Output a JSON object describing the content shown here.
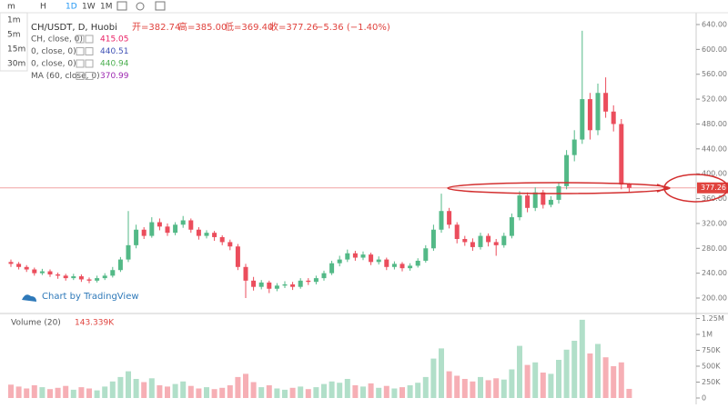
{
  "toolbar": {
    "items": [
      "m",
      "H",
      "1D",
      "1W",
      "1M"
    ],
    "menu": [
      "1m",
      "5m",
      "15m",
      "30m"
    ]
  },
  "legend": {
    "symbol": "CH/USDT, D, Huobi",
    "open": "开=382.74",
    "high": "高=385.00",
    "low": "低=369.40",
    "close": "收=377.26",
    "change": "−5.36 (−1.40%)",
    "indicators": [
      {
        "name": "CH, close, 0)",
        "value": "415.05",
        "color": "#e91e63"
      },
      {
        "name": "0, close, 0)",
        "value": "440.51",
        "color": "#3f51b5"
      },
      {
        "name": "0, close, 0)",
        "value": "440.94",
        "color": "#4caf50"
      },
      {
        "name": "MA (60, close, 0)",
        "value": "370.99",
        "color": "#9c27b0"
      }
    ]
  },
  "watermark": "Chart by TradingView",
  "chart_data": [
    {
      "type": "candlestick",
      "up_color": "#53b987",
      "down_color": "#eb4d5c",
      "open": [
        258,
        255,
        250,
        246,
        240,
        243,
        238,
        236,
        232,
        235,
        230,
        228,
        232,
        236,
        245,
        262,
        285,
        310,
        300,
        322,
        315,
        305,
        318,
        325,
        310,
        300,
        305,
        298,
        290,
        283,
        250,
        228,
        218,
        225,
        215,
        220,
        222,
        218,
        228,
        226,
        232,
        240,
        256,
        262,
        272,
        265,
        270,
        258,
        262,
        250,
        255,
        248,
        252,
        260,
        280,
        310,
        340,
        318,
        295,
        290,
        282,
        300,
        290,
        285,
        300,
        330,
        365,
        345,
        370,
        350,
        358,
        380,
        430,
        455,
        520,
        470,
        530,
        500,
        480,
        382.74
      ],
      "high": [
        262,
        258,
        253,
        249,
        247,
        246,
        241,
        239,
        239,
        238,
        233,
        236,
        240,
        250,
        266,
        340,
        318,
        314,
        330,
        328,
        320,
        322,
        332,
        328,
        314,
        309,
        308,
        301,
        294,
        287,
        255,
        234,
        229,
        228,
        224,
        227,
        226,
        232,
        232,
        236,
        244,
        260,
        268,
        278,
        276,
        275,
        273,
        267,
        265,
        259,
        258,
        256,
        264,
        285,
        318,
        368,
        345,
        322,
        300,
        296,
        305,
        304,
        295,
        305,
        336,
        372,
        370,
        378,
        374,
        364,
        386,
        438,
        470,
        630,
        530,
        545,
        555,
        510,
        488,
        385
      ],
      "low": [
        250,
        246,
        242,
        236,
        237,
        234,
        231,
        228,
        229,
        226,
        224,
        225,
        229,
        233,
        242,
        258,
        280,
        295,
        297,
        309,
        300,
        301,
        313,
        305,
        294,
        296,
        292,
        285,
        277,
        245,
        200,
        212,
        214,
        208,
        211,
        216,
        213,
        215,
        221,
        222,
        228,
        237,
        251,
        258,
        260,
        261,
        253,
        254,
        245,
        246,
        243,
        244,
        249,
        257,
        276,
        305,
        312,
        288,
        284,
        276,
        278,
        283,
        268,
        281,
        296,
        325,
        338,
        340,
        344,
        346,
        352,
        375,
        420,
        448,
        455,
        462,
        490,
        468,
        375,
        369.4
      ],
      "close": [
        255,
        250,
        246,
        240,
        243,
        238,
        236,
        232,
        235,
        230,
        228,
        232,
        236,
        245,
        262,
        285,
        310,
        300,
        322,
        315,
        305,
        318,
        325,
        310,
        300,
        305,
        298,
        290,
        283,
        250,
        228,
        218,
        225,
        215,
        220,
        222,
        218,
        228,
        226,
        232,
        240,
        256,
        262,
        272,
        265,
        270,
        258,
        262,
        250,
        255,
        248,
        252,
        260,
        280,
        310,
        340,
        318,
        295,
        290,
        282,
        300,
        290,
        285,
        300,
        330,
        365,
        345,
        370,
        350,
        358,
        380,
        430,
        455,
        520,
        470,
        530,
        500,
        480,
        382.62,
        377.26
      ],
      "last_price": 377.26,
      "ylim": [
        200,
        640
      ],
      "yticks": [
        {
          "value": 200,
          "label": "200.00"
        },
        {
          "value": 240,
          "label": "240.00"
        },
        {
          "value": 280,
          "label": "280.00"
        },
        {
          "value": 320,
          "label": "320.00"
        },
        {
          "value": 360,
          "label": "360.00"
        },
        {
          "value": 400,
          "label": "400.00"
        },
        {
          "value": 440,
          "label": "440.00"
        },
        {
          "value": 480,
          "label": "480.00"
        },
        {
          "value": 520,
          "label": "520.00"
        },
        {
          "value": 560,
          "label": "560.00"
        },
        {
          "value": 600,
          "label": "600.00"
        },
        {
          "value": 640,
          "label": "640.00"
        }
      ]
    },
    {
      "type": "bar",
      "title": "Volume (20)",
      "value_label": "143.339K",
      "values": [
        210000,
        180000,
        150000,
        200000,
        170000,
        140000,
        160000,
        190000,
        130000,
        170000,
        150000,
        120000,
        180000,
        260000,
        330000,
        420000,
        300000,
        250000,
        310000,
        200000,
        180000,
        220000,
        260000,
        190000,
        150000,
        170000,
        140000,
        160000,
        200000,
        330000,
        380000,
        250000,
        170000,
        200000,
        150000,
        130000,
        160000,
        180000,
        140000,
        170000,
        220000,
        260000,
        240000,
        300000,
        200000,
        180000,
        230000,
        160000,
        190000,
        150000,
        170000,
        200000,
        240000,
        330000,
        620000,
        780000,
        420000,
        350000,
        300000,
        260000,
        330000,
        280000,
        310000,
        290000,
        450000,
        820000,
        520000,
        560000,
        400000,
        380000,
        600000,
        760000,
        900000,
        1230000,
        700000,
        850000,
        640000,
        500000,
        560000,
        143339
      ],
      "ylim": [
        0,
        1250000
      ],
      "yticks": [
        0,
        {
          "value": 250000,
          "label": "250K"
        },
        {
          "value": 500000,
          "label": "500K"
        },
        {
          "value": 750000,
          "label": "750K"
        },
        {
          "value": 1000000,
          "label": "1M"
        },
        {
          "value": 1250000,
          "label": "1.25M"
        }
      ]
    }
  ]
}
